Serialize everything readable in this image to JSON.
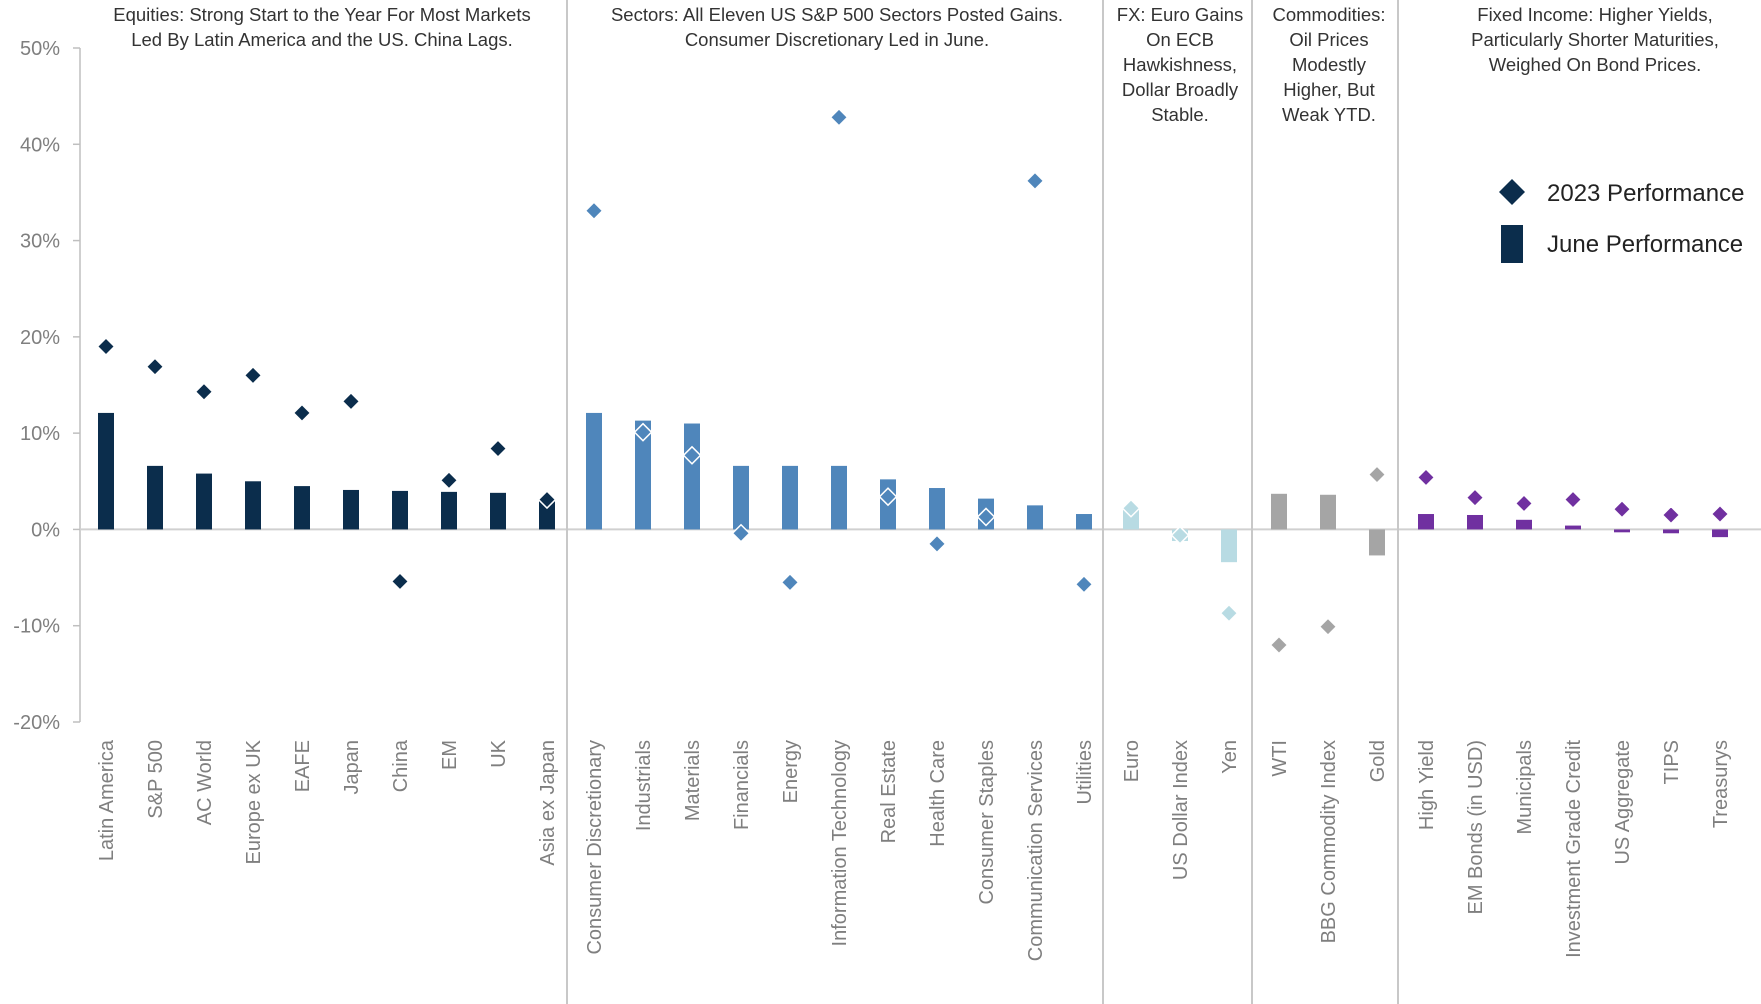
{
  "chart_data": {
    "type": "bar",
    "ylim": [
      -20,
      50
    ],
    "y_ticks": [
      "50%",
      "40%",
      "30%",
      "20%",
      "10%",
      "0%",
      "-10%",
      "-20%"
    ],
    "y_tick_values": [
      50,
      40,
      30,
      20,
      10,
      0,
      -10,
      -20
    ],
    "legend": {
      "placement": "right",
      "ytd_label": "2023 Performance",
      "june_label": "June Performance"
    },
    "groups": [
      {
        "title": [
          "Equities: Strong Start to the Year For Most Markets",
          "Led By Latin America and the US. China Lags."
        ],
        "color": "#0b2d4c",
        "categories": [
          "Latin America",
          "S&P 500",
          "AC World",
          "Europe ex UK",
          "EAFE",
          "Japan",
          "China",
          "EM",
          "UK",
          "Asia ex Japan"
        ],
        "june": [
          12.1,
          6.6,
          5.8,
          5.0,
          4.5,
          4.1,
          4.0,
          3.9,
          3.8,
          3.2
        ],
        "ytd": [
          19.0,
          16.9,
          14.3,
          16.0,
          12.1,
          13.3,
          -5.4,
          5.1,
          8.4,
          3.1
        ]
      },
      {
        "title": [
          "Sectors: All Eleven US S&P 500 Sectors Posted Gains.",
          "Consumer Discretionary Led in June."
        ],
        "color": "#4f86bb",
        "categories": [
          "Consumer Discretionary",
          "Industrials",
          "Materials",
          "Financials",
          "Energy",
          "Information Technology",
          "Real Estate",
          "Health Care",
          "Consumer Staples",
          "Communication Services",
          "Utilities"
        ],
        "june": [
          12.1,
          11.3,
          11.0,
          6.6,
          6.6,
          6.6,
          5.2,
          4.3,
          3.2,
          2.5,
          1.6
        ],
        "ytd": [
          33.1,
          10.1,
          7.7,
          -0.4,
          -5.5,
          42.8,
          3.4,
          -1.5,
          1.3,
          36.2,
          -5.7
        ]
      },
      {
        "title": [
          "FX: Euro Gains",
          "On ECB",
          "Hawkishness,",
          "Dollar Broadly",
          "Stable."
        ],
        "color": "#b8dbe3",
        "categories": [
          "Euro",
          "US Dollar Index",
          "Yen"
        ],
        "june": [
          2.3,
          -1.2,
          -3.4
        ],
        "ytd": [
          2.2,
          -0.6,
          -8.7
        ]
      },
      {
        "title": [
          "Commodities:",
          "Oil Prices",
          "Modestly",
          "Higher, But",
          "Weak YTD."
        ],
        "color": "#a5a5a5",
        "categories": [
          "WTI",
          "BBG Commodity Index",
          "Gold"
        ],
        "june": [
          3.7,
          3.6,
          -2.7
        ],
        "ytd": [
          -12.0,
          -10.1,
          5.7
        ]
      },
      {
        "title": [
          "Fixed Income: Higher Yields,",
          "Particularly Shorter Maturities,",
          "Weighed On Bond Prices."
        ],
        "color": "#7030a0",
        "categories": [
          "High Yield",
          "EM Bonds (in USD)",
          "Municipals",
          "Investment Grade Credit",
          "US Aggregate",
          "TIPS",
          "Treasurys"
        ],
        "june": [
          1.6,
          1.5,
          1.0,
          0.4,
          -0.3,
          -0.4,
          -0.8
        ],
        "ytd": [
          5.4,
          3.3,
          2.7,
          3.1,
          2.1,
          1.5,
          1.6
        ]
      }
    ]
  }
}
